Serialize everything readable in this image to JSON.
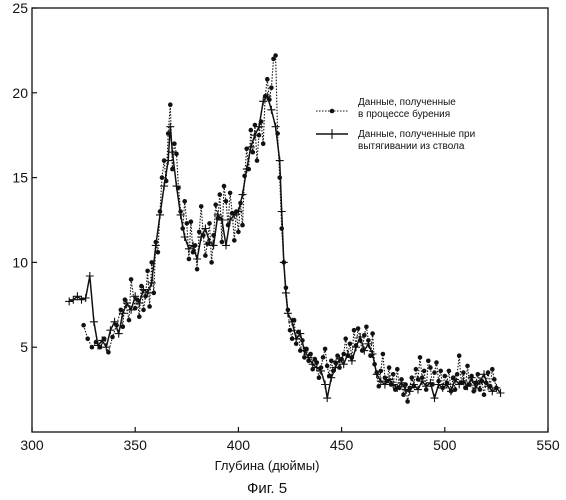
{
  "chart_data": {
    "type": "line",
    "title": "",
    "caption": "Фиг. 5",
    "xlabel": "Глубина (дюймы)",
    "ylabel": "",
    "xlim": [
      300,
      550
    ],
    "ylim": [
      0,
      25
    ],
    "x_ticks": [
      300,
      350,
      400,
      450,
      500,
      550
    ],
    "y_ticks": [
      5,
      10,
      15,
      20,
      25
    ],
    "grid": false,
    "legend_position": "upper-right",
    "series": [
      {
        "name": "Данные, полученные в процессе бурения",
        "name_lines": [
          "Данные, полученные",
          "в процессе бурения"
        ],
        "style": "dotted-with-dots",
        "color": "#111111",
        "points": [
          [
            325,
            6.3
          ],
          [
            327,
            5.5
          ],
          [
            329,
            5.0
          ],
          [
            331,
            5.3
          ],
          [
            333,
            5.0
          ],
          [
            335,
            5.5
          ],
          [
            337,
            4.7
          ],
          [
            339,
            5.6
          ],
          [
            341,
            6.3
          ],
          [
            343,
            7.2
          ],
          [
            344,
            6.2
          ],
          [
            345,
            7.8
          ],
          [
            347,
            6.6
          ],
          [
            348,
            9.0
          ],
          [
            350,
            7.3
          ],
          [
            351,
            7.8
          ],
          [
            352,
            6.8
          ],
          [
            353,
            8.6
          ],
          [
            354,
            7.2
          ],
          [
            355,
            8.0
          ],
          [
            356,
            9.5
          ],
          [
            357,
            7.4
          ],
          [
            358,
            10.0
          ],
          [
            359,
            8.2
          ],
          [
            360,
            11.2
          ],
          [
            361,
            10.6
          ],
          [
            362,
            13.0
          ],
          [
            363,
            15.0
          ],
          [
            364,
            16.0
          ],
          [
            365,
            14.8
          ],
          [
            366,
            17.6
          ],
          [
            367,
            19.3
          ],
          [
            368,
            15.5
          ],
          [
            369,
            17.0
          ],
          [
            370,
            16.4
          ],
          [
            371,
            14.4
          ],
          [
            372,
            13.0
          ],
          [
            373,
            12.0
          ],
          [
            374,
            13.6
          ],
          [
            375,
            12.3
          ],
          [
            376,
            10.2
          ],
          [
            377,
            12.4
          ],
          [
            378,
            10.6
          ],
          [
            379,
            11.0
          ],
          [
            380,
            9.6
          ],
          [
            381,
            11.8
          ],
          [
            382,
            13.3
          ],
          [
            383,
            11.6
          ],
          [
            384,
            10.4
          ],
          [
            385,
            11.1
          ],
          [
            386,
            12.3
          ],
          [
            387,
            10.0
          ],
          [
            388,
            11.6
          ],
          [
            389,
            13.4
          ],
          [
            390,
            12.6
          ],
          [
            391,
            14.0
          ],
          [
            392,
            11.2
          ],
          [
            393,
            14.5
          ],
          [
            394,
            13.6
          ],
          [
            395,
            12.2
          ],
          [
            396,
            14.1
          ],
          [
            397,
            12.9
          ],
          [
            398,
            11.3
          ],
          [
            399,
            13.0
          ],
          [
            400,
            11.8
          ],
          [
            401,
            13.5
          ],
          [
            402,
            12.2
          ],
          [
            403,
            15.1
          ],
          [
            404,
            16.7
          ],
          [
            405,
            15.5
          ],
          [
            406,
            17.8
          ],
          [
            407,
            16.5
          ],
          [
            408,
            18.1
          ],
          [
            409,
            16.0
          ],
          [
            410,
            17.5
          ],
          [
            411,
            18.3
          ],
          [
            412,
            17.0
          ],
          [
            413,
            19.8
          ],
          [
            414,
            20.8
          ],
          [
            415,
            19.6
          ],
          [
            416,
            20.3
          ],
          [
            417,
            22.0
          ],
          [
            418,
            22.2
          ],
          [
            419,
            17.6
          ],
          [
            420,
            15.0
          ],
          [
            421,
            12.0
          ],
          [
            422,
            10.0
          ],
          [
            423,
            8.5
          ],
          [
            424,
            7.2
          ],
          [
            425,
            6.0
          ],
          [
            426,
            5.5
          ],
          [
            427,
            6.6
          ],
          [
            428,
            5.2
          ],
          [
            429,
            5.9
          ],
          [
            430,
            4.8
          ],
          [
            431,
            5.4
          ],
          [
            432,
            4.4
          ],
          [
            433,
            4.9
          ],
          [
            434,
            4.2
          ],
          [
            435,
            4.6
          ],
          [
            436,
            3.7
          ],
          [
            437,
            4.3
          ],
          [
            438,
            4.1
          ],
          [
            439,
            3.2
          ],
          [
            440,
            3.8
          ],
          [
            441,
            4.4
          ],
          [
            442,
            4.9
          ],
          [
            443,
            3.9
          ],
          [
            444,
            3.3
          ],
          [
            445,
            4.2
          ],
          [
            446,
            3.6
          ],
          [
            447,
            4.1
          ],
          [
            448,
            4.5
          ],
          [
            449,
            3.8
          ],
          [
            450,
            4.3
          ],
          [
            451,
            4.6
          ],
          [
            452,
            5.5
          ],
          [
            453,
            4.5
          ],
          [
            454,
            5.2
          ],
          [
            455,
            4.4
          ],
          [
            456,
            6.0
          ],
          [
            457,
            5.1
          ],
          [
            458,
            6.1
          ],
          [
            459,
            5.4
          ],
          [
            460,
            4.8
          ],
          [
            461,
            5.7
          ],
          [
            462,
            6.2
          ],
          [
            463,
            5.4
          ],
          [
            464,
            4.5
          ],
          [
            465,
            5.8
          ],
          [
            466,
            4.0
          ],
          [
            467,
            3.5
          ],
          [
            468,
            2.7
          ],
          [
            469,
            3.6
          ],
          [
            470,
            4.6
          ],
          [
            471,
            3.2
          ],
          [
            472,
            3.0
          ],
          [
            473,
            3.8
          ],
          [
            474,
            2.8
          ],
          [
            475,
            3.4
          ],
          [
            476,
            2.5
          ],
          [
            477,
            3.7
          ],
          [
            478,
            2.6
          ],
          [
            479,
            3.1
          ],
          [
            480,
            2.2
          ],
          [
            481,
            2.8
          ],
          [
            482,
            1.8
          ],
          [
            483,
            2.6
          ],
          [
            484,
            3.2
          ],
          [
            485,
            2.7
          ],
          [
            486,
            3.7
          ],
          [
            487,
            3.1
          ],
          [
            488,
            4.4
          ],
          [
            489,
            3.2
          ],
          [
            490,
            3.6
          ],
          [
            491,
            2.5
          ],
          [
            492,
            4.2
          ],
          [
            493,
            3.8
          ],
          [
            494,
            2.8
          ],
          [
            495,
            3.5
          ],
          [
            496,
            4.1
          ],
          [
            497,
            3.0
          ],
          [
            498,
            3.6
          ],
          [
            499,
            2.6
          ],
          [
            500,
            3.3
          ],
          [
            501,
            2.9
          ],
          [
            502,
            3.6
          ],
          [
            503,
            2.4
          ],
          [
            504,
            3.2
          ],
          [
            505,
            2.5
          ],
          [
            506,
            3.4
          ],
          [
            507,
            4.5
          ],
          [
            508,
            2.9
          ],
          [
            509,
            3.5
          ],
          [
            510,
            2.6
          ],
          [
            511,
            3.9
          ],
          [
            512,
            2.8
          ],
          [
            513,
            3.3
          ],
          [
            514,
            2.4
          ],
          [
            515,
            2.9
          ],
          [
            516,
            3.4
          ],
          [
            517,
            2.5
          ],
          [
            518,
            3.0
          ],
          [
            519,
            2.2
          ],
          [
            520,
            2.9
          ],
          [
            521,
            3.5
          ],
          [
            522,
            2.7
          ],
          [
            523,
            3.7
          ],
          [
            524,
            3.1
          ],
          [
            525,
            2.6
          ]
        ]
      },
      {
        "name": "Данные, полученные при вытягивании из ствола",
        "name_lines": [
          "Данные, полученные при",
          "вытягивании из ствола"
        ],
        "style": "solid-with-plus",
        "color": "#111111",
        "points": [
          [
            318,
            7.7
          ],
          [
            320,
            7.8
          ],
          [
            322,
            8.0
          ],
          [
            324,
            7.8
          ],
          [
            326,
            7.9
          ],
          [
            328,
            9.2
          ],
          [
            330,
            6.5
          ],
          [
            332,
            5.1
          ],
          [
            334,
            5.4
          ],
          [
            336,
            5.0
          ],
          [
            338,
            6.0
          ],
          [
            340,
            6.5
          ],
          [
            342,
            5.8
          ],
          [
            344,
            7.0
          ],
          [
            346,
            7.6
          ],
          [
            348,
            7.2
          ],
          [
            350,
            8.0
          ],
          [
            352,
            7.6
          ],
          [
            354,
            8.4
          ],
          [
            356,
            8.2
          ],
          [
            358,
            8.8
          ],
          [
            360,
            11.0
          ],
          [
            362,
            12.8
          ],
          [
            364,
            14.5
          ],
          [
            366,
            16.0
          ],
          [
            367,
            18.0
          ],
          [
            368,
            16.5
          ],
          [
            370,
            14.5
          ],
          [
            372,
            12.8
          ],
          [
            374,
            11.5
          ],
          [
            376,
            10.8
          ],
          [
            378,
            11.0
          ],
          [
            380,
            10.2
          ],
          [
            382,
            11.5
          ],
          [
            384,
            12.0
          ],
          [
            386,
            11.2
          ],
          [
            388,
            11.0
          ],
          [
            390,
            12.8
          ],
          [
            392,
            12.5
          ],
          [
            394,
            11.0
          ],
          [
            396,
            12.5
          ],
          [
            398,
            12.8
          ],
          [
            400,
            13.0
          ],
          [
            402,
            14.0
          ],
          [
            404,
            15.5
          ],
          [
            406,
            16.8
          ],
          [
            408,
            17.5
          ],
          [
            410,
            18.0
          ],
          [
            412,
            19.5
          ],
          [
            414,
            19.8
          ],
          [
            416,
            19.0
          ],
          [
            418,
            18.0
          ],
          [
            420,
            16.0
          ],
          [
            421,
            13.0
          ],
          [
            422,
            10.0
          ],
          [
            423,
            8.2
          ],
          [
            424,
            7.0
          ],
          [
            426,
            6.5
          ],
          [
            428,
            5.5
          ],
          [
            430,
            5.8
          ],
          [
            432,
            4.8
          ],
          [
            434,
            4.4
          ],
          [
            436,
            4.0
          ],
          [
            438,
            3.8
          ],
          [
            440,
            3.6
          ],
          [
            442,
            2.8
          ],
          [
            443,
            2.0
          ],
          [
            445,
            3.2
          ],
          [
            447,
            3.8
          ],
          [
            449,
            4.3
          ],
          [
            451,
            4.0
          ],
          [
            453,
            4.6
          ],
          [
            455,
            4.2
          ],
          [
            457,
            5.0
          ],
          [
            459,
            5.6
          ],
          [
            461,
            4.8
          ],
          [
            463,
            5.2
          ],
          [
            465,
            4.6
          ],
          [
            467,
            3.4
          ],
          [
            469,
            3.0
          ],
          [
            471,
            2.8
          ],
          [
            473,
            3.1
          ],
          [
            475,
            2.8
          ],
          [
            477,
            2.6
          ],
          [
            479,
            2.9
          ],
          [
            481,
            2.5
          ],
          [
            483,
            2.4
          ],
          [
            485,
            2.8
          ],
          [
            487,
            2.5
          ],
          [
            489,
            3.0
          ],
          [
            491,
            2.7
          ],
          [
            493,
            2.9
          ],
          [
            495,
            2.0
          ],
          [
            497,
            2.8
          ],
          [
            499,
            2.6
          ],
          [
            501,
            2.8
          ],
          [
            503,
            2.4
          ],
          [
            505,
            3.1
          ],
          [
            507,
            2.8
          ],
          [
            509,
            3.0
          ],
          [
            511,
            2.7
          ],
          [
            513,
            3.2
          ],
          [
            515,
            2.6
          ],
          [
            517,
            3.0
          ],
          [
            519,
            3.4
          ],
          [
            521,
            2.7
          ],
          [
            523,
            2.4
          ],
          [
            525,
            2.6
          ],
          [
            527,
            2.3
          ]
        ]
      }
    ]
  }
}
